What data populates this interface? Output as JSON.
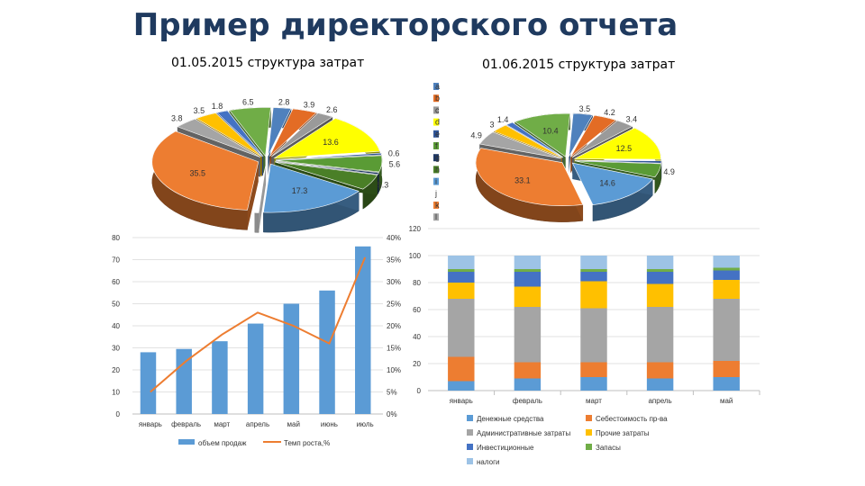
{
  "page": {
    "title": "Пример директорского отчета"
  },
  "chart_data": [
    {
      "type": "pie",
      "title": "01.05.2015 структура затрат",
      "legend": {
        "placement": "right",
        "entries": [
          "a",
          "b",
          "c",
          "d",
          "e",
          "f",
          "g",
          "h",
          "i",
          "j",
          "k",
          "l"
        ]
      },
      "slices": [
        {
          "category": "a",
          "value": 2.8,
          "color": "#4f81bd",
          "label": "2.8"
        },
        {
          "category": "b",
          "value": 3.9,
          "color": "#e36c25",
          "label": "3.9"
        },
        {
          "category": "c",
          "value": 2.6,
          "color": "#9a9a9a",
          "label": "2.6"
        },
        {
          "category": "d",
          "value": 13.6,
          "color": "#ffff00",
          "label": "13.6"
        },
        {
          "category": "e",
          "value": 0.6,
          "color": "#2f5597",
          "label": "0.6"
        },
        {
          "category": "f",
          "value": 5.6,
          "color": "#5a9b35",
          "label": "5.6"
        },
        {
          "category": "g",
          "value": 0.6,
          "color": "#1f3864",
          "label": ""
        },
        {
          "category": "h",
          "value": 5.3,
          "color": "#4a7f27",
          "label": "5.3"
        },
        {
          "category": "i",
          "value": 17.3,
          "color": "#5b9bd5",
          "label": "17.3"
        },
        {
          "category": "j",
          "value": 0.6,
          "color": "#ffffff",
          "label": ""
        },
        {
          "category": "k",
          "value": 35.5,
          "color": "#ed7d31",
          "label": "35.5"
        },
        {
          "category": "l",
          "value": 3.8,
          "color": "#a5a5a5",
          "label": "3.8"
        },
        {
          "category": "",
          "value": 3.5,
          "color": "#ffc000",
          "label": "3.5"
        },
        {
          "category": "",
          "value": 1.8,
          "color": "#4472c4",
          "label": "1.8"
        },
        {
          "category": "",
          "value": 6.5,
          "color": "#70ad47",
          "label": "6.5"
        }
      ]
    },
    {
      "type": "pie",
      "title": "01.06.2015 структура затрат",
      "slices": [
        {
          "value": 3.5,
          "color": "#4f81bd",
          "label": "3.5"
        },
        {
          "value": 4.2,
          "color": "#e36c25",
          "label": "4.2"
        },
        {
          "value": 3.4,
          "color": "#9a9a9a",
          "label": "3.4"
        },
        {
          "value": 12.5,
          "color": "#ffff00",
          "label": "12.5"
        },
        {
          "value": 0.8,
          "color": "#2f5597",
          "label": ""
        },
        {
          "value": 4.9,
          "color": "#5a9b35",
          "label": "4.9"
        },
        {
          "value": 14.6,
          "color": "#5b9bd5",
          "label": "14.6"
        },
        {
          "value": 33.1,
          "color": "#ed7d31",
          "label": "33.1"
        },
        {
          "value": 4.9,
          "color": "#a5a5a5",
          "label": "4.9"
        },
        {
          "value": 3.0,
          "color": "#ffc000",
          "label": "3"
        },
        {
          "value": 1.4,
          "color": "#4472c4",
          "label": "1.4"
        },
        {
          "value": 10.4,
          "color": "#70ad47",
          "label": "10.4"
        }
      ]
    },
    {
      "type": "bar",
      "categories": [
        "январь",
        "февраль",
        "март",
        "апрель",
        "май",
        "июнь",
        "июль"
      ],
      "series": [
        {
          "name": "объем продаж",
          "type": "bar",
          "axis": "left",
          "values": [
            28,
            29.5,
            33,
            41,
            50,
            56,
            76
          ],
          "color": "#5b9bd5"
        },
        {
          "name": "Темп роста,%",
          "type": "line",
          "axis": "right",
          "values": [
            5,
            12,
            18,
            23,
            20,
            16,
            35.5
          ],
          "color": "#ed7d31"
        }
      ],
      "ylim_left": [
        0,
        80
      ],
      "yticks_left": [
        "0",
        "10",
        "20",
        "30",
        "40",
        "50",
        "60",
        "70",
        "80"
      ],
      "ylim_right": [
        0,
        40
      ],
      "yticks_right": [
        "0%",
        "5%",
        "10%",
        "15%",
        "20%",
        "25%",
        "30%",
        "35%",
        "40%"
      ],
      "grid": true,
      "legend": "bottom"
    },
    {
      "type": "bar",
      "stacked": true,
      "categories": [
        "январь",
        "февраль",
        "март",
        "апрель",
        "май"
      ],
      "series": [
        {
          "name": "Денежные средства",
          "values": [
            7,
            9,
            10,
            9,
            10
          ],
          "color": "#5b9bd5"
        },
        {
          "name": "Себестоимость пр-ва",
          "values": [
            18,
            12,
            11,
            12,
            12
          ],
          "color": "#ed7d31"
        },
        {
          "name": "Административные затраты",
          "values": [
            43,
            41,
            40,
            41,
            46
          ],
          "color": "#a5a5a5"
        },
        {
          "name": "Прочие затраты",
          "values": [
            12,
            15,
            20,
            17,
            14
          ],
          "color": "#ffc000"
        },
        {
          "name": "Инвестиционные",
          "values": [
            8,
            11,
            7,
            9,
            7
          ],
          "color": "#4472c4"
        },
        {
          "name": "Запасы",
          "values": [
            2,
            2,
            2,
            2,
            2
          ],
          "color": "#70ad47"
        },
        {
          "name": "налоги",
          "values": [
            10,
            10,
            10,
            10,
            9
          ],
          "color": "#9dc3e6"
        }
      ],
      "ylim": [
        0,
        120
      ],
      "yticks": [
        "0",
        "20",
        "40",
        "60",
        "80",
        "100",
        "120"
      ],
      "grid": true,
      "legend": "bottom"
    }
  ]
}
